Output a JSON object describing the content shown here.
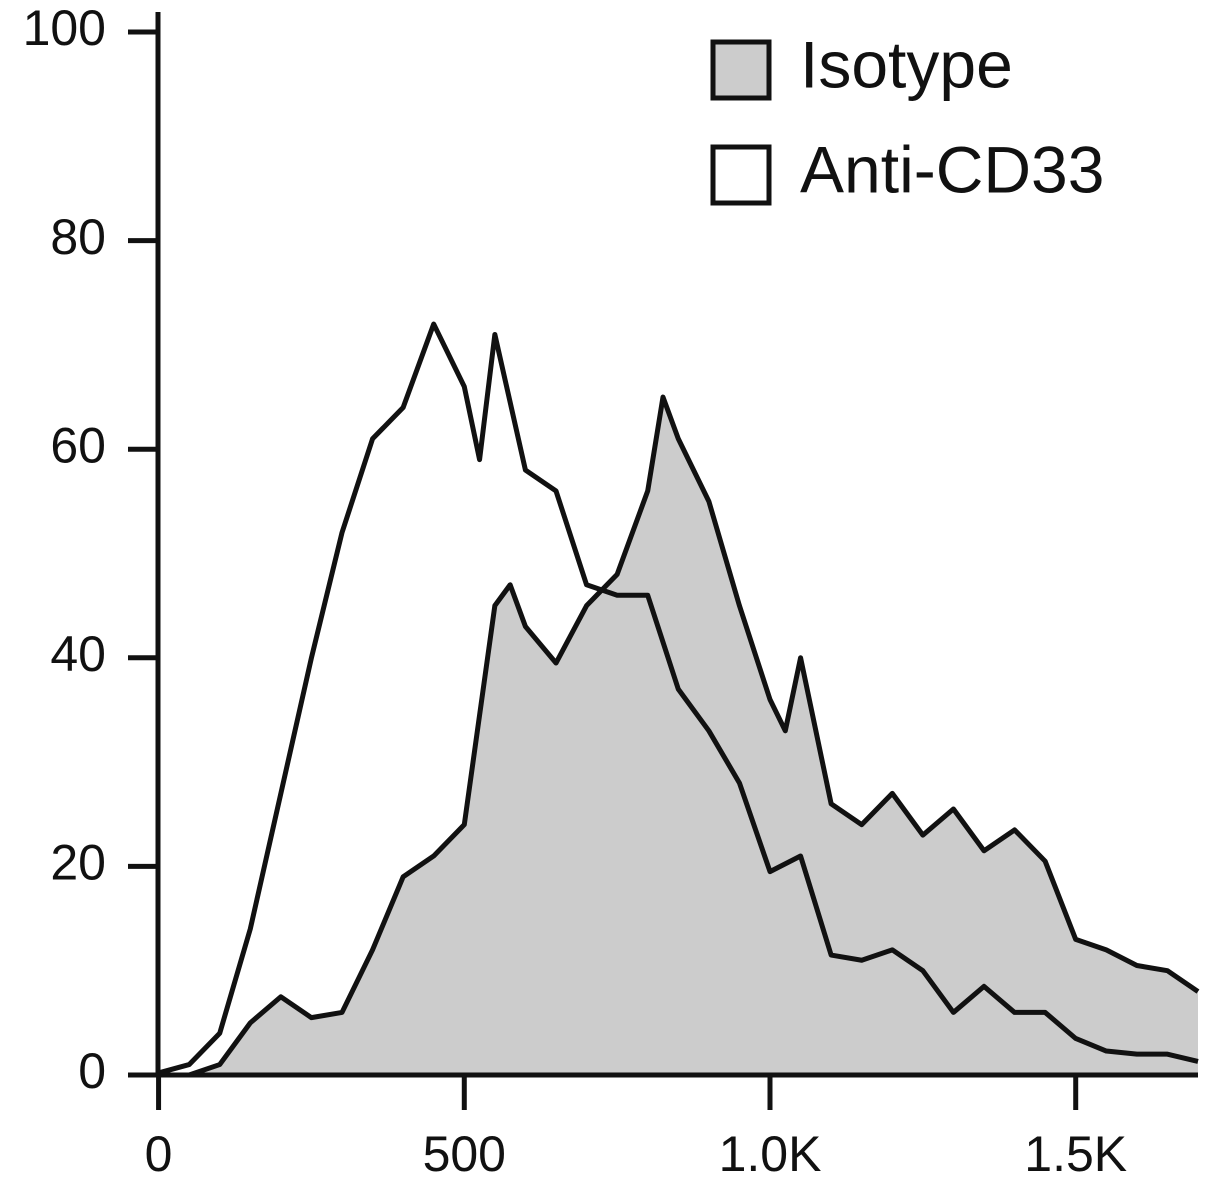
{
  "chart_data": {
    "type": "histogram-overlay",
    "series": [
      {
        "name": "Isotype",
        "color": "#cccccc",
        "x": [
          0,
          50,
          100,
          150,
          200,
          250,
          300,
          350,
          400,
          450,
          500,
          550,
          575,
          600,
          650,
          700,
          750,
          800,
          825,
          850,
          900,
          950,
          1000,
          1025,
          1050,
          1100,
          1150,
          1200,
          1250,
          1300,
          1350,
          1400,
          1450,
          1500,
          1550,
          1600,
          1650,
          1700
        ],
        "values": [
          0,
          0,
          1,
          5,
          7.5,
          5.5,
          6,
          12,
          19,
          21,
          24,
          45,
          47,
          43,
          39.5,
          45,
          48,
          56,
          65,
          61,
          55,
          45,
          36,
          33,
          40,
          26,
          24,
          27,
          23,
          25.5,
          21.5,
          23.5,
          20.5,
          13,
          12,
          10.5,
          10,
          8
        ]
      },
      {
        "name": "Anti-CD33",
        "color": "#ffffff",
        "x": [
          0,
          50,
          100,
          150,
          200,
          250,
          300,
          350,
          400,
          450,
          500,
          525,
          550,
          600,
          650,
          700,
          750,
          800,
          850,
          900,
          950,
          1000,
          1050,
          1100,
          1150,
          1200,
          1250,
          1300,
          1350,
          1400,
          1450,
          1500,
          1550,
          1600,
          1650,
          1700
        ],
        "values": [
          0.2,
          1,
          4,
          14,
          27,
          40,
          52,
          61,
          64,
          72,
          66,
          59,
          71,
          58,
          56,
          47,
          46,
          46,
          37,
          33,
          28,
          19.5,
          21,
          11.5,
          11,
          12,
          10,
          6,
          8.5,
          6,
          6,
          3.5,
          2.3,
          2,
          2,
          1.3
        ]
      }
    ],
    "line_color": "#111111",
    "xlim": [
      -50,
      1700
    ],
    "ylim": [
      0,
      100
    ],
    "xticks": [
      0,
      500,
      {
        "value": 1000,
        "label": "1.0K"
      },
      {
        "value": 1500,
        "label": "1.5K"
      }
    ],
    "yticks": [
      0,
      20,
      40,
      60,
      80,
      100
    ],
    "legend": "upper right"
  }
}
